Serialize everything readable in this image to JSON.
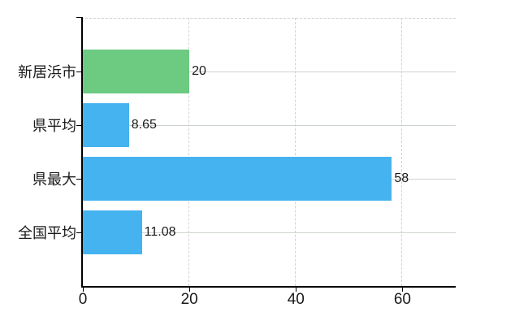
{
  "chart_data": {
    "type": "bar",
    "orientation": "horizontal",
    "title": "",
    "categories": [
      "新居浜市",
      "県平均",
      "県最大",
      "全国平均"
    ],
    "values": [
      20,
      8.65,
      58,
      11.08
    ],
    "value_labels": [
      "20",
      "8.65",
      "58",
      "11.08"
    ],
    "bar_colors": [
      "#6cca81",
      "#45b3ef",
      "#45b3ef",
      "#45b3ef"
    ],
    "x_ticks": [
      0,
      20,
      40,
      60
    ],
    "x_tick_labels": [
      "0",
      "20",
      "40",
      "60"
    ],
    "xlim": [
      0,
      70
    ],
    "grid": {
      "vertical_style": "dashed",
      "horizontal_style": "solid",
      "top_border_style": "dashed"
    },
    "legend_position": "none"
  },
  "colors": {
    "bar_green": "#6cca81",
    "bar_blue": "#45b3ef",
    "axis": "#000000",
    "grid_horizontal": "#ccd5cb",
    "grid_vertical": "#d5d0d5",
    "text": "#1a1a1a",
    "background": "#ffffff"
  }
}
